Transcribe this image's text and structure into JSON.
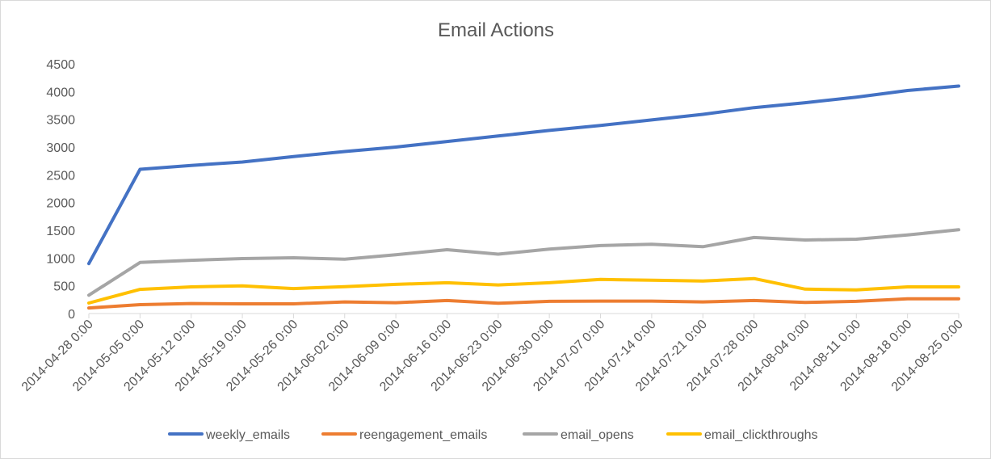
{
  "chart_data": {
    "type": "line",
    "title": "Email Actions",
    "xlabel": "",
    "ylabel": "",
    "ylim": [
      0,
      4500
    ],
    "yticks": [
      0,
      500,
      1000,
      1500,
      2000,
      2500,
      3000,
      3500,
      4000,
      4500
    ],
    "ytick_labels": [
      "0",
      "500",
      "1000",
      "1500",
      "2000",
      "2500",
      "3000",
      "3500",
      "4000",
      "4500"
    ],
    "grid": false,
    "legend_position": "bottom",
    "categories": [
      "2014-04-28 0:00",
      "2014-05-05 0:00",
      "2014-05-12 0:00",
      "2014-05-19 0:00",
      "2014-05-26 0:00",
      "2014-06-02 0:00",
      "2014-06-09 0:00",
      "2014-06-16 0:00",
      "2014-06-23 0:00",
      "2014-06-30 0:00",
      "2014-07-07 0:00",
      "2014-07-14 0:00",
      "2014-07-21 0:00",
      "2014-07-28 0:00",
      "2014-08-04 0:00",
      "2014-08-11 0:00",
      "2014-08-18 0:00",
      "2014-08-25 0:00"
    ],
    "series": [
      {
        "name": "weekly_emails",
        "color": "#4472c4",
        "values": [
          900,
          2600,
          2670,
          2730,
          2830,
          2920,
          3000,
          3100,
          3200,
          3300,
          3390,
          3490,
          3590,
          3710,
          3800,
          3900,
          4020,
          4100
        ]
      },
      {
        "name": "reengagement_emails",
        "color": "#ed7d31",
        "values": [
          100,
          160,
          180,
          175,
          175,
          210,
          195,
          235,
          185,
          220,
          225,
          225,
          210,
          235,
          200,
          220,
          265,
          265
        ]
      },
      {
        "name": "email_opens",
        "color": "#a5a5a5",
        "values": [
          330,
          920,
          960,
          990,
          1005,
          980,
          1060,
          1150,
          1070,
          1160,
          1225,
          1250,
          1205,
          1370,
          1325,
          1340,
          1415,
          1510
        ]
      },
      {
        "name": "email_clickthroughs",
        "color": "#ffc000",
        "values": [
          190,
          435,
          480,
          500,
          450,
          485,
          525,
          555,
          515,
          555,
          615,
          600,
          585,
          630,
          440,
          425,
          480,
          480
        ]
      }
    ]
  }
}
